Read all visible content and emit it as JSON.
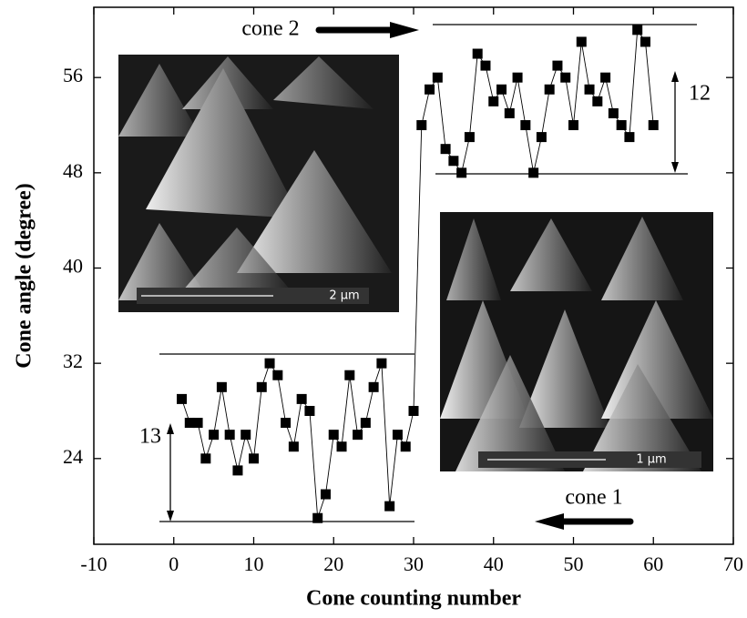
{
  "chart_data": {
    "type": "line",
    "x_label": "Cone counting number",
    "y_label": "Cone angle (degree)",
    "annotations": [
      "cone 2",
      "cone 1",
      "12",
      "13",
      "2 µm",
      "1 µm"
    ],
    "x": [
      1,
      2,
      3,
      4,
      5,
      6,
      7,
      8,
      9,
      10,
      11,
      12,
      13,
      14,
      15,
      16,
      17,
      18,
      19,
      20,
      21,
      22,
      23,
      24,
      25,
      26,
      27,
      28,
      29,
      30,
      31,
      32,
      33,
      34,
      35,
      36,
      37,
      38,
      39,
      40,
      41,
      42,
      43,
      44,
      45,
      46,
      47,
      48,
      49,
      50,
      51,
      52,
      53,
      54,
      55,
      56,
      57,
      58,
      59,
      60
    ],
    "series": [
      {
        "color": "#000000",
        "values": [
          29,
          27,
          27,
          24,
          26,
          30,
          26,
          23,
          26,
          24,
          30,
          32,
          31,
          27,
          25,
          29,
          28,
          19,
          21,
          26,
          25,
          31,
          26,
          27,
          30,
          32,
          20,
          26,
          25,
          28,
          52,
          55,
          56,
          50,
          49,
          48,
          51,
          58,
          57,
          54,
          55,
          53,
          56,
          52,
          48,
          51,
          55,
          57,
          56,
          52,
          59,
          55,
          54,
          56,
          53,
          52,
          51,
          60,
          59,
          52
        ]
      }
    ],
    "xlim": [
      -10,
      70
    ],
    "xticks": [
      -10,
      0,
      10,
      20,
      30,
      40,
      50,
      60,
      70
    ],
    "ylim": [
      16.8,
      61.9
    ],
    "yticks": [
      24,
      32,
      40,
      48,
      56
    ]
  }
}
